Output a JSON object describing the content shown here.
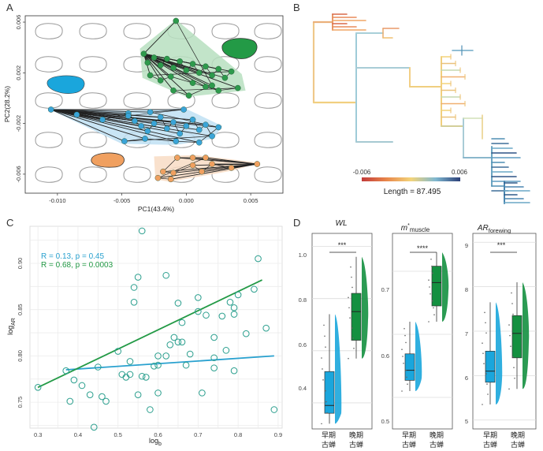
{
  "colors": {
    "green": "#2e9a4c",
    "green_fill": "#b7dfc0",
    "blue": "#3aa4d8",
    "blue_fill": "#bfe1f3",
    "orange": "#f0a060",
    "orange_fill": "#f8dcc4",
    "teal": "#2b9f8e",
    "cyan_line": "#29a1cf",
    "green_line": "#239a46",
    "box_blue": "#1aa6dc",
    "box_green": "#149040"
  },
  "panelA": {
    "label": "A",
    "xlabel": "PC1(43.4%)",
    "ylabel": "PC2(28.2%)",
    "xticks": [
      "-0.010",
      "-0.005",
      "0.000",
      "0.005"
    ],
    "yticks": [
      "0.006",
      "0.002",
      "-0.002",
      "-0.006"
    ]
  },
  "panelB": {
    "label": "B",
    "legend_min": "-0.006",
    "legend_max": "0.006",
    "length_label": "Length = 87.495"
  },
  "panelC": {
    "label": "C",
    "stat1": "R = 0.13, p = 0.45",
    "stat2": "R = 0.68, p = 0.0003",
    "xlabel": "log",
    "xlabel_sub": "b",
    "ylabel": "log",
    "ylabel_sub": "AR",
    "xticks": [
      "0.3",
      "0.4",
      "0.5",
      "0.6",
      "0.7",
      "0.8",
      "0.9"
    ],
    "yticks": [
      "0.75",
      "0.80",
      "0.85",
      "0.90"
    ]
  },
  "panelD": {
    "label": "D",
    "sig1": "***",
    "sig2": "****",
    "sig3": "***",
    "p1_yticks": [
      "1.0",
      "0.8",
      "0.6",
      "0.4"
    ],
    "p2_yticks": [
      "0.7",
      "0.6",
      "0.5"
    ],
    "p3_yticks": [
      "9",
      "8",
      "7",
      "6",
      "5"
    ],
    "cats": [
      [
        "早期",
        "古蝉"
      ],
      [
        "晚期",
        "古蝉"
      ]
    ]
  },
  "chart_data": [
    {
      "type": "scatter",
      "panel": "A",
      "xlabel": "PC1(43.4%)",
      "ylabel": "PC2(28.2%)",
      "xlim": [
        -0.0125,
        0.0075
      ],
      "ylim": [
        -0.0075,
        0.0065
      ],
      "series": [
        {
          "points": [
            [
              -0.0033,
              0.0035
            ],
            [
              -0.003,
              0.0028
            ],
            [
              -0.0025,
              0.0032
            ],
            [
              -0.002,
              0.0026
            ],
            [
              -0.0015,
              0.0031
            ],
            [
              -0.001,
              0.0024
            ],
            [
              -0.0005,
              0.0029
            ],
            [
              0.0,
              0.0022
            ],
            [
              0.0005,
              0.0027
            ],
            [
              0.001,
              0.002
            ],
            [
              0.0015,
              0.0025
            ],
            [
              0.002,
              0.0018
            ],
            [
              0.0025,
              0.0023
            ],
            [
              0.003,
              0.0016
            ],
            [
              0.0035,
              0.0021
            ],
            [
              -0.0028,
              0.0018
            ],
            [
              -0.002,
              0.0014
            ],
            [
              -0.0012,
              0.0017
            ],
            [
              0.0005,
              0.0012
            ],
            [
              0.0015,
              0.0009
            ],
            [
              0.0025,
              0.0006
            ],
            [
              0.004,
              0.0008
            ],
            [
              -0.001,
              0.0006
            ],
            [
              0.0002,
              0.0002
            ],
            [
              0.002,
              0.001
            ],
            [
              -0.0008,
              0.0061
            ]
          ]
        },
        {
          "points": [
            [
              -0.0105,
              -0.0009
            ],
            [
              -0.0085,
              -0.0013
            ],
            [
              -0.0065,
              -0.0017
            ],
            [
              -0.0045,
              -0.0012
            ],
            [
              -0.004,
              -0.0018
            ],
            [
              -0.0035,
              -0.0022
            ],
            [
              -0.003,
              -0.0026
            ],
            [
              -0.0025,
              -0.002
            ],
            [
              -0.002,
              -0.0015
            ],
            [
              -0.0015,
              -0.0024
            ],
            [
              -0.001,
              -0.0019
            ],
            [
              -0.0005,
              -0.0028
            ],
            [
              0.0,
              -0.0022
            ],
            [
              0.0005,
              -0.0017
            ],
            [
              0.001,
              -0.0025
            ],
            [
              0.0015,
              -0.0021
            ],
            [
              0.002,
              -0.003
            ],
            [
              -0.0048,
              -0.0034
            ],
            [
              -0.0032,
              -0.0032
            ],
            [
              -0.0008,
              -0.0034
            ],
            [
              0.001,
              -0.0035
            ],
            [
              0.0025,
              -0.0023
            ],
            [
              -0.0028,
              -0.0011
            ],
            [
              -0.0002,
              -0.0009
            ],
            [
              -0.0045,
              -0.0014
            ]
          ]
        },
        {
          "points": [
            [
              0.0055,
              -0.0052
            ],
            [
              0.0035,
              -0.0055
            ],
            [
              0.002,
              -0.0052
            ],
            [
              0.0012,
              -0.0058
            ],
            [
              0.0005,
              -0.0053
            ],
            [
              -0.001,
              -0.0059
            ],
            [
              -0.0018,
              -0.0058
            ],
            [
              -0.0007,
              -0.0047
            ],
            [
              0.0005,
              -0.0047
            ],
            [
              0.0015,
              -0.0047
            ],
            [
              -0.0022,
              -0.0063
            ],
            [
              -0.0012,
              -0.0064
            ]
          ]
        }
      ]
    },
    {
      "type": "scatter",
      "panel": "C",
      "xlabel": "logb",
      "ylabel": "logAR",
      "xlim": [
        0.28,
        0.91
      ],
      "ylim": [
        0.722,
        0.94
      ],
      "stats": [
        "R = 0.13, p = 0.45",
        "R = 0.68, p = 0.0003"
      ],
      "points": [
        [
          0.3,
          0.766
        ],
        [
          0.37,
          0.784
        ],
        [
          0.38,
          0.751
        ],
        [
          0.39,
          0.774
        ],
        [
          0.41,
          0.768
        ],
        [
          0.43,
          0.758
        ],
        [
          0.44,
          0.723
        ],
        [
          0.45,
          0.788
        ],
        [
          0.46,
          0.756
        ],
        [
          0.47,
          0.751
        ],
        [
          0.5,
          0.805
        ],
        [
          0.51,
          0.78
        ],
        [
          0.52,
          0.777
        ],
        [
          0.53,
          0.78
        ],
        [
          0.53,
          0.794
        ],
        [
          0.54,
          0.874
        ],
        [
          0.54,
          0.858
        ],
        [
          0.55,
          0.885
        ],
        [
          0.55,
          0.758
        ],
        [
          0.56,
          0.935
        ],
        [
          0.56,
          0.778
        ],
        [
          0.57,
          0.777
        ],
        [
          0.58,
          0.742
        ],
        [
          0.59,
          0.789
        ],
        [
          0.6,
          0.8
        ],
        [
          0.6,
          0.79
        ],
        [
          0.6,
          0.76
        ],
        [
          0.62,
          0.887
        ],
        [
          0.62,
          0.8
        ],
        [
          0.63,
          0.812
        ],
        [
          0.64,
          0.82
        ],
        [
          0.65,
          0.857
        ],
        [
          0.65,
          0.815
        ],
        [
          0.66,
          0.815
        ],
        [
          0.66,
          0.836
        ],
        [
          0.67,
          0.79
        ],
        [
          0.68,
          0.802
        ],
        [
          0.7,
          0.848
        ],
        [
          0.7,
          0.863
        ],
        [
          0.71,
          0.76
        ],
        [
          0.72,
          0.844
        ],
        [
          0.74,
          0.82
        ],
        [
          0.74,
          0.798
        ],
        [
          0.74,
          0.787
        ],
        [
          0.76,
          0.843
        ],
        [
          0.77,
          0.806
        ],
        [
          0.78,
          0.858
        ],
        [
          0.79,
          0.852
        ],
        [
          0.79,
          0.845
        ],
        [
          0.79,
          0.784
        ],
        [
          0.8,
          0.866
        ],
        [
          0.82,
          0.824
        ],
        [
          0.84,
          0.872
        ],
        [
          0.85,
          0.905
        ],
        [
          0.87,
          0.83
        ],
        [
          0.89,
          0.742
        ]
      ],
      "fit_lines": [
        {
          "color": "#29a1cf",
          "x": [
            0.37,
            0.89
          ],
          "y": [
            0.785,
            0.8
          ]
        },
        {
          "color": "#239a46",
          "x": [
            0.3,
            0.86
          ],
          "y": [
            0.766,
            0.882
          ]
        }
      ]
    },
    {
      "type": "box",
      "panel": "D",
      "categories": [
        "早期古蝉",
        "晚期古蝉"
      ],
      "plots": [
        {
          "title": "WL",
          "ylim": [
            0.3,
            1.05
          ],
          "boxes": [
            {
              "min": 0.32,
              "q1": 0.36,
              "median": 0.39,
              "q3": 0.52,
              "max": 0.74
            },
            {
              "min": 0.57,
              "q1": 0.64,
              "median": 0.75,
              "q3": 0.82,
              "max": 0.96
            }
          ],
          "significance": "***"
        },
        {
          "title": "m*muscle",
          "ylim": [
            0.45,
            0.76
          ],
          "boxes": [
            {
              "min": 0.51,
              "q1": 0.527,
              "median": 0.543,
              "q3": 0.569,
              "max": 0.62
            },
            {
              "min": 0.62,
              "q1": 0.645,
              "median": 0.682,
              "q3": 0.708,
              "max": 0.73
            }
          ],
          "significance": "****"
        },
        {
          "title": "ARforewing",
          "ylim": [
            4.8,
            9.2
          ],
          "boxes": [
            {
              "min": 5.35,
              "q1": 5.85,
              "median": 6.1,
              "q3": 6.55,
              "max": 7.65
            },
            {
              "min": 5.7,
              "q1": 6.4,
              "median": 6.95,
              "q3": 7.35,
              "max": 8.1
            }
          ],
          "significance": "***"
        }
      ]
    }
  ]
}
